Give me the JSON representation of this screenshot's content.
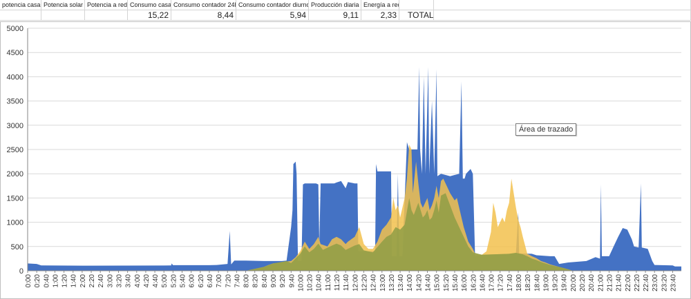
{
  "sheet": {
    "headers": [
      "potencia casa",
      "Potencia solar",
      "Potencia a red",
      "Consumo casa",
      "Consumo contador 24h",
      "Consumo contador diurno",
      "Producción diaria",
      "Energía a red"
    ],
    "values": [
      "15,22",
      "8,44",
      "5,94",
      "9,11",
      "2,33"
    ],
    "total_label": "TOTAL"
  },
  "tooltip": "Área de trazado",
  "chart_data": {
    "type": "area",
    "ylim": [
      0,
      5000
    ],
    "y_ticks": [
      0,
      500,
      1000,
      1500,
      2000,
      2500,
      3000,
      3500,
      4000,
      4500,
      5000
    ],
    "x_tick_labels": [
      "0:00",
      "0:20",
      "0:40",
      "1:00",
      "1:20",
      "1:40",
      "2:00",
      "2:20",
      "2:40",
      "3:00",
      "3:20",
      "3:40",
      "4:00",
      "4:20",
      "4:40",
      "5:00",
      "5:20",
      "5:40",
      "6:00",
      "6:20",
      "6:40",
      "7:00",
      "7:20",
      "7:40",
      "8:00",
      "8:20",
      "8:40",
      "9:00",
      "9:20",
      "9:40",
      "10:00",
      "10:20",
      "10:40",
      "11:00",
      "11:20",
      "11:40",
      "12:00",
      "12:20",
      "12:40",
      "13:00",
      "13:20",
      "13:40",
      "14:00",
      "14:20",
      "14:40",
      "15:00",
      "15:20",
      "15:40",
      "16:00",
      "16:20",
      "16:40",
      "17:00",
      "17:20",
      "17:40",
      "18:00",
      "18:20",
      "18:40",
      "19:00",
      "19:20",
      "19:40",
      "20:00",
      "20:20",
      "20:40",
      "21:00",
      "21:20",
      "21:40",
      "22:00",
      "22:20",
      "22:40",
      "23:00",
      "23:20",
      "23:40"
    ],
    "series": [
      {
        "color": "#4472c4",
        "points": [
          [
            0,
            150
          ],
          [
            20,
            140
          ],
          [
            30,
            110
          ],
          [
            120,
            105
          ],
          [
            300,
            108
          ],
          [
            316,
            110
          ],
          [
            317,
            150
          ],
          [
            320,
            115
          ],
          [
            400,
            115
          ],
          [
            416,
            120
          ],
          [
            440,
            140
          ],
          [
            445,
            820
          ],
          [
            448,
            130
          ],
          [
            455,
            210
          ],
          [
            480,
            210
          ],
          [
            520,
            200
          ],
          [
            540,
            200
          ],
          [
            560,
            200
          ],
          [
            570,
            210
          ],
          [
            580,
            900
          ],
          [
            583,
            1250
          ],
          [
            585,
            2200
          ],
          [
            590,
            2250
          ],
          [
            592,
            2000
          ],
          [
            595,
            200
          ],
          [
            603,
            200
          ],
          [
            606,
            1780
          ],
          [
            610,
            1800
          ],
          [
            635,
            1800
          ],
          [
            640,
            1780
          ],
          [
            642,
            550
          ],
          [
            645,
            1800
          ],
          [
            675,
            1800
          ],
          [
            680,
            1820
          ],
          [
            690,
            1850
          ],
          [
            700,
            1700
          ],
          [
            705,
            1830
          ],
          [
            720,
            1800
          ],
          [
            726,
            1800
          ],
          [
            728,
            400
          ],
          [
            765,
            400
          ],
          [
            767,
            2200
          ],
          [
            770,
            2050
          ],
          [
            800,
            2050
          ],
          [
            802,
            300
          ],
          [
            812,
            300
          ],
          [
            815,
            2000
          ],
          [
            818,
            300
          ],
          [
            825,
            300
          ],
          [
            835,
            2650
          ],
          [
            840,
            2500
          ],
          [
            858,
            2500
          ],
          [
            862,
            4200
          ],
          [
            864,
            2500
          ],
          [
            868,
            2000
          ],
          [
            872,
            4000
          ],
          [
            876,
            2000
          ],
          [
            882,
            4200
          ],
          [
            884,
            2000
          ],
          [
            890,
            3500
          ],
          [
            895,
            2000
          ],
          [
            900,
            4150
          ],
          [
            902,
            1950
          ],
          [
            910,
            2000
          ],
          [
            930,
            1950
          ],
          [
            950,
            2000
          ],
          [
            955,
            3900
          ],
          [
            958,
            1900
          ],
          [
            962,
            1900
          ],
          [
            965,
            2000
          ],
          [
            975,
            2100
          ],
          [
            980,
            2000
          ],
          [
            985,
            300
          ],
          [
            1000,
            330
          ],
          [
            1060,
            350
          ],
          [
            1075,
            370
          ],
          [
            1080,
            1200
          ],
          [
            1082,
            360
          ],
          [
            1110,
            350
          ],
          [
            1120,
            320
          ],
          [
            1150,
            300
          ],
          [
            1160,
            300
          ],
          [
            1170,
            140
          ],
          [
            1190,
            170
          ],
          [
            1230,
            200
          ],
          [
            1250,
            280
          ],
          [
            1260,
            250
          ],
          [
            1262,
            1780
          ],
          [
            1264,
            300
          ],
          [
            1280,
            300
          ],
          [
            1290,
            500
          ],
          [
            1300,
            700
          ],
          [
            1310,
            880
          ],
          [
            1320,
            850
          ],
          [
            1330,
            650
          ],
          [
            1335,
            500
          ],
          [
            1345,
            480
          ],
          [
            1350,
            1800
          ],
          [
            1352,
            480
          ],
          [
            1365,
            450
          ],
          [
            1375,
            200
          ],
          [
            1380,
            120
          ],
          [
            1420,
            110
          ],
          [
            1425,
            90
          ],
          [
            1439,
            90
          ]
        ]
      },
      {
        "color": "#f2c14e",
        "points": [
          [
            480,
            0
          ],
          [
            500,
            40
          ],
          [
            520,
            80
          ],
          [
            530,
            120
          ],
          [
            540,
            150
          ],
          [
            560,
            180
          ],
          [
            580,
            200
          ],
          [
            590,
            280
          ],
          [
            600,
            400
          ],
          [
            610,
            600
          ],
          [
            620,
            450
          ],
          [
            630,
            550
          ],
          [
            640,
            700
          ],
          [
            645,
            550
          ],
          [
            660,
            500
          ],
          [
            670,
            650
          ],
          [
            680,
            700
          ],
          [
            690,
            650
          ],
          [
            700,
            550
          ],
          [
            705,
            600
          ],
          [
            720,
            700
          ],
          [
            730,
            900
          ],
          [
            740,
            550
          ],
          [
            750,
            450
          ],
          [
            760,
            450
          ],
          [
            770,
            600
          ],
          [
            780,
            850
          ],
          [
            790,
            950
          ],
          [
            800,
            1100
          ],
          [
            805,
            1500
          ],
          [
            810,
            1250
          ],
          [
            815,
            1350
          ],
          [
            820,
            1100
          ],
          [
            830,
            1500
          ],
          [
            835,
            1900
          ],
          [
            840,
            2600
          ],
          [
            845,
            2500
          ],
          [
            848,
            1600
          ],
          [
            855,
            2250
          ],
          [
            860,
            1800
          ],
          [
            865,
            1400
          ],
          [
            870,
            1300
          ],
          [
            880,
            1500
          ],
          [
            885,
            1250
          ],
          [
            890,
            1350
          ],
          [
            895,
            1500
          ],
          [
            900,
            1750
          ],
          [
            905,
            1500
          ],
          [
            910,
            1850
          ],
          [
            915,
            1900
          ],
          [
            920,
            1800
          ],
          [
            925,
            1700
          ],
          [
            930,
            1600
          ],
          [
            940,
            1450
          ],
          [
            945,
            1500
          ],
          [
            950,
            1300
          ],
          [
            960,
            900
          ],
          [
            970,
            600
          ],
          [
            980,
            450
          ],
          [
            985,
            350
          ],
          [
            1000,
            330
          ],
          [
            1010,
            400
          ],
          [
            1020,
            800
          ],
          [
            1025,
            1400
          ],
          [
            1030,
            1200
          ],
          [
            1035,
            900
          ],
          [
            1040,
            1000
          ],
          [
            1045,
            1100
          ],
          [
            1050,
            1000
          ],
          [
            1055,
            1250
          ],
          [
            1060,
            1400
          ],
          [
            1065,
            1900
          ],
          [
            1070,
            1600
          ],
          [
            1075,
            1300
          ],
          [
            1080,
            1050
          ],
          [
            1085,
            900
          ],
          [
            1090,
            700
          ],
          [
            1100,
            350
          ],
          [
            1110,
            300
          ],
          [
            1120,
            260
          ],
          [
            1130,
            200
          ],
          [
            1140,
            170
          ],
          [
            1150,
            130
          ],
          [
            1170,
            80
          ],
          [
            1190,
            30
          ],
          [
            1200,
            0
          ]
        ]
      },
      {
        "color": "#8f9e45",
        "points": [
          [
            480,
            0
          ],
          [
            500,
            40
          ],
          [
            520,
            80
          ],
          [
            540,
            150
          ],
          [
            560,
            180
          ],
          [
            570,
            200
          ],
          [
            580,
            160
          ],
          [
            600,
            350
          ],
          [
            610,
            500
          ],
          [
            620,
            380
          ],
          [
            630,
            450
          ],
          [
            640,
            560
          ],
          [
            650,
            430
          ],
          [
            670,
            520
          ],
          [
            680,
            560
          ],
          [
            690,
            520
          ],
          [
            700,
            430
          ],
          [
            720,
            520
          ],
          [
            730,
            550
          ],
          [
            740,
            420
          ],
          [
            760,
            380
          ],
          [
            780,
            600
          ],
          [
            790,
            700
          ],
          [
            800,
            750
          ],
          [
            810,
            900
          ],
          [
            820,
            850
          ],
          [
            830,
            950
          ],
          [
            840,
            1500
          ],
          [
            845,
            1250
          ],
          [
            850,
            1150
          ],
          [
            860,
            1400
          ],
          [
            865,
            1250
          ],
          [
            870,
            1100
          ],
          [
            875,
            1150
          ],
          [
            880,
            1250
          ],
          [
            885,
            1050
          ],
          [
            890,
            1100
          ],
          [
            895,
            1250
          ],
          [
            900,
            1450
          ],
          [
            905,
            1200
          ],
          [
            910,
            1550
          ],
          [
            920,
            1600
          ],
          [
            930,
            1350
          ],
          [
            940,
            1100
          ],
          [
            950,
            900
          ],
          [
            960,
            700
          ],
          [
            970,
            500
          ],
          [
            980,
            380
          ],
          [
            1000,
            330
          ],
          [
            1060,
            350
          ],
          [
            1075,
            370
          ],
          [
            1090,
            340
          ],
          [
            1100,
            300
          ],
          [
            1110,
            250
          ],
          [
            1120,
            220
          ],
          [
            1130,
            180
          ],
          [
            1140,
            150
          ],
          [
            1150,
            120
          ],
          [
            1170,
            80
          ],
          [
            1190,
            30
          ],
          [
            1200,
            0
          ]
        ]
      }
    ]
  }
}
